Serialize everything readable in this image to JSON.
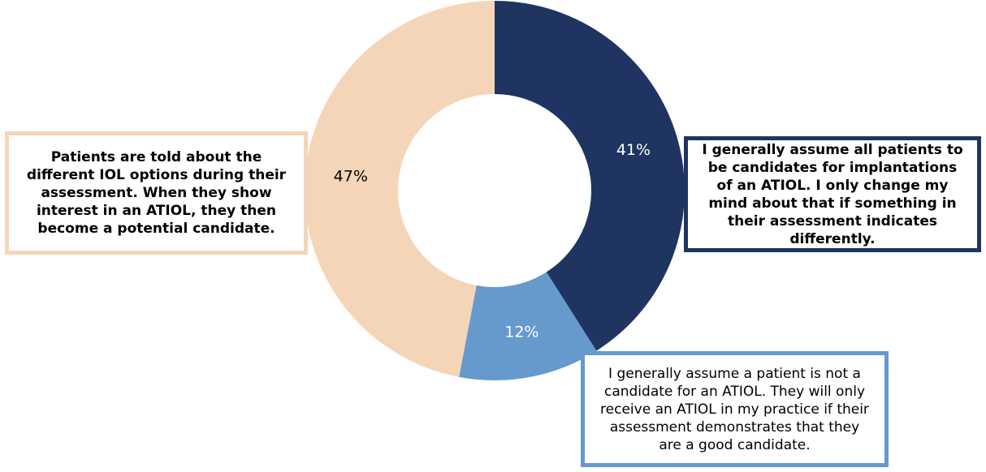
{
  "chart_data": {
    "type": "pie",
    "categories": [
      "I generally assume all patients to be candidates for implantations of an ATIOL. I only change my mind about that if something in their assessment indicates differently.",
      "I generally assume a patient is not a candidate for an ATIOL. They will only receive an ATIOL in my practice if their assessment demonstrates that they are a good candidate.",
      "Patients are told about the different IOL options during their assessment. When they show interest in an ATIOL, they then become a potential candidate."
    ],
    "values": [
      41,
      12,
      47
    ],
    "value_labels": [
      "41%",
      "12%",
      "47%"
    ],
    "colors": [
      "#1f3460",
      "#6699cc",
      "#f5d5b8"
    ],
    "label_colors": [
      "#ffffff",
      "#ffffff",
      "#000000"
    ],
    "donut": true,
    "start_angle": "12 o'clock, clockwise",
    "title": "",
    "legend": "callout boxes"
  }
}
